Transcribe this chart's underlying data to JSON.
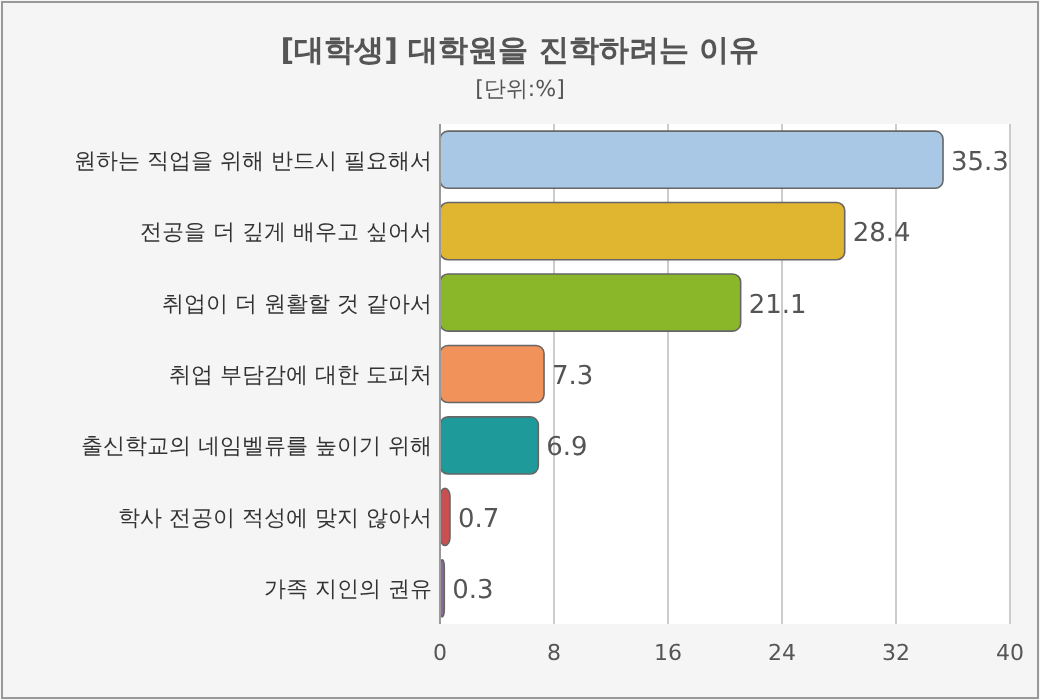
{
  "chart_data": {
    "type": "bar",
    "orientation": "horizontal",
    "title": "[대학생] 대학원을 진학하려는 이유",
    "subtitle": "[단위:%]",
    "categories": [
      "원하는 직업을 위해 반드시 필요해서",
      "전공을 더 깊게 배우고 싶어서",
      "취업이 더 원활할 것 같아서",
      "취업 부담감에 대한 도피처",
      "출신학교의 네임벨류를 높이기 위해",
      "학사 전공이 적성에 맞지 않아서",
      "가족 지인의 권유"
    ],
    "values": [
      35.3,
      28.4,
      21.1,
      7.3,
      6.9,
      0.7,
      0.3
    ],
    "colors": [
      "#a9c8e6",
      "#e0b530",
      "#8ab62a",
      "#f0925a",
      "#1f9a9a",
      "#c85050",
      "#8a6a9a"
    ],
    "xlim": [
      0,
      40
    ],
    "xticks": [
      0,
      8,
      16,
      24,
      32,
      40
    ],
    "grid": "x",
    "data_labels": true
  }
}
